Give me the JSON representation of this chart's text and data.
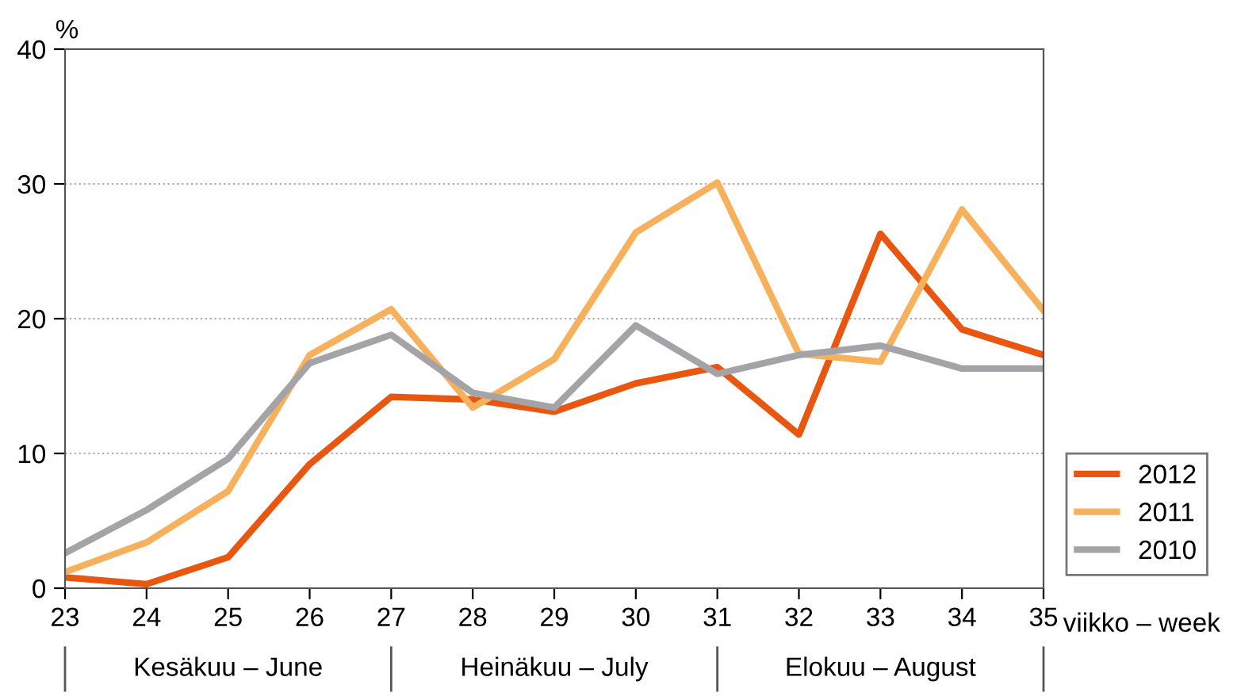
{
  "chart_data": {
    "type": "line",
    "ylabel": "%",
    "xlabel": "viikko – week",
    "x": [
      23,
      24,
      25,
      26,
      27,
      28,
      29,
      30,
      31,
      32,
      33,
      34,
      35
    ],
    "series": [
      {
        "name": "2012",
        "color": "#e8560f",
        "values": [
          0.8,
          0.3,
          2.3,
          9.2,
          14.2,
          14.0,
          13.1,
          15.2,
          16.4,
          11.4,
          26.3,
          19.2,
          17.3
        ]
      },
      {
        "name": "2011",
        "color": "#f7b15c",
        "values": [
          1.2,
          3.4,
          7.2,
          17.3,
          20.7,
          13.4,
          17.0,
          26.4,
          30.1,
          17.4,
          16.8,
          28.1,
          20.6
        ]
      },
      {
        "name": "2010",
        "color": "#a3a3a8",
        "values": [
          2.6,
          5.8,
          9.6,
          16.7,
          18.8,
          14.5,
          13.4,
          19.5,
          15.9,
          17.3,
          18.0,
          16.3,
          16.3
        ]
      }
    ],
    "xlim": [
      23,
      35
    ],
    "ylim": [
      0,
      40
    ],
    "xticks": [
      23,
      24,
      25,
      26,
      27,
      28,
      29,
      30,
      31,
      32,
      33,
      34,
      35
    ],
    "yticks": [
      0,
      10,
      20,
      30,
      40
    ],
    "grid": "y",
    "legend": "right",
    "marker": "none",
    "line_style": "solid",
    "annotations": [
      "Kesäkuu – June",
      "Heinäkuu – July",
      "Elokuu – August"
    ]
  }
}
